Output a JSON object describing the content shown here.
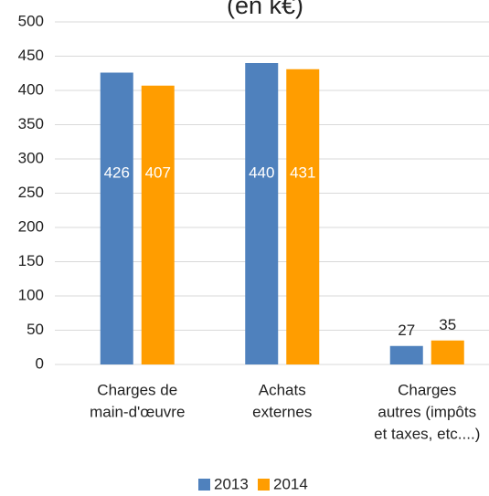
{
  "chart_data": {
    "type": "bar",
    "title": "(en k€)",
    "categories": [
      [
        "Charges de",
        "main-d'œuvre"
      ],
      [
        "Achats",
        "externes"
      ],
      [
        "Charges",
        "autres (impôts",
        "et taxes, etc....)"
      ]
    ],
    "series": [
      {
        "name": "2013",
        "color": "#4f81bd",
        "values": [
          426,
          440,
          27
        ]
      },
      {
        "name": "2014",
        "color": "#ff9d00",
        "values": [
          407,
          431,
          35
        ]
      }
    ],
    "ylim": [
      0,
      500
    ],
    "yticks": [
      0,
      50,
      100,
      150,
      200,
      250,
      300,
      350,
      400,
      450,
      500
    ],
    "grid": true,
    "legend": "bottom"
  }
}
